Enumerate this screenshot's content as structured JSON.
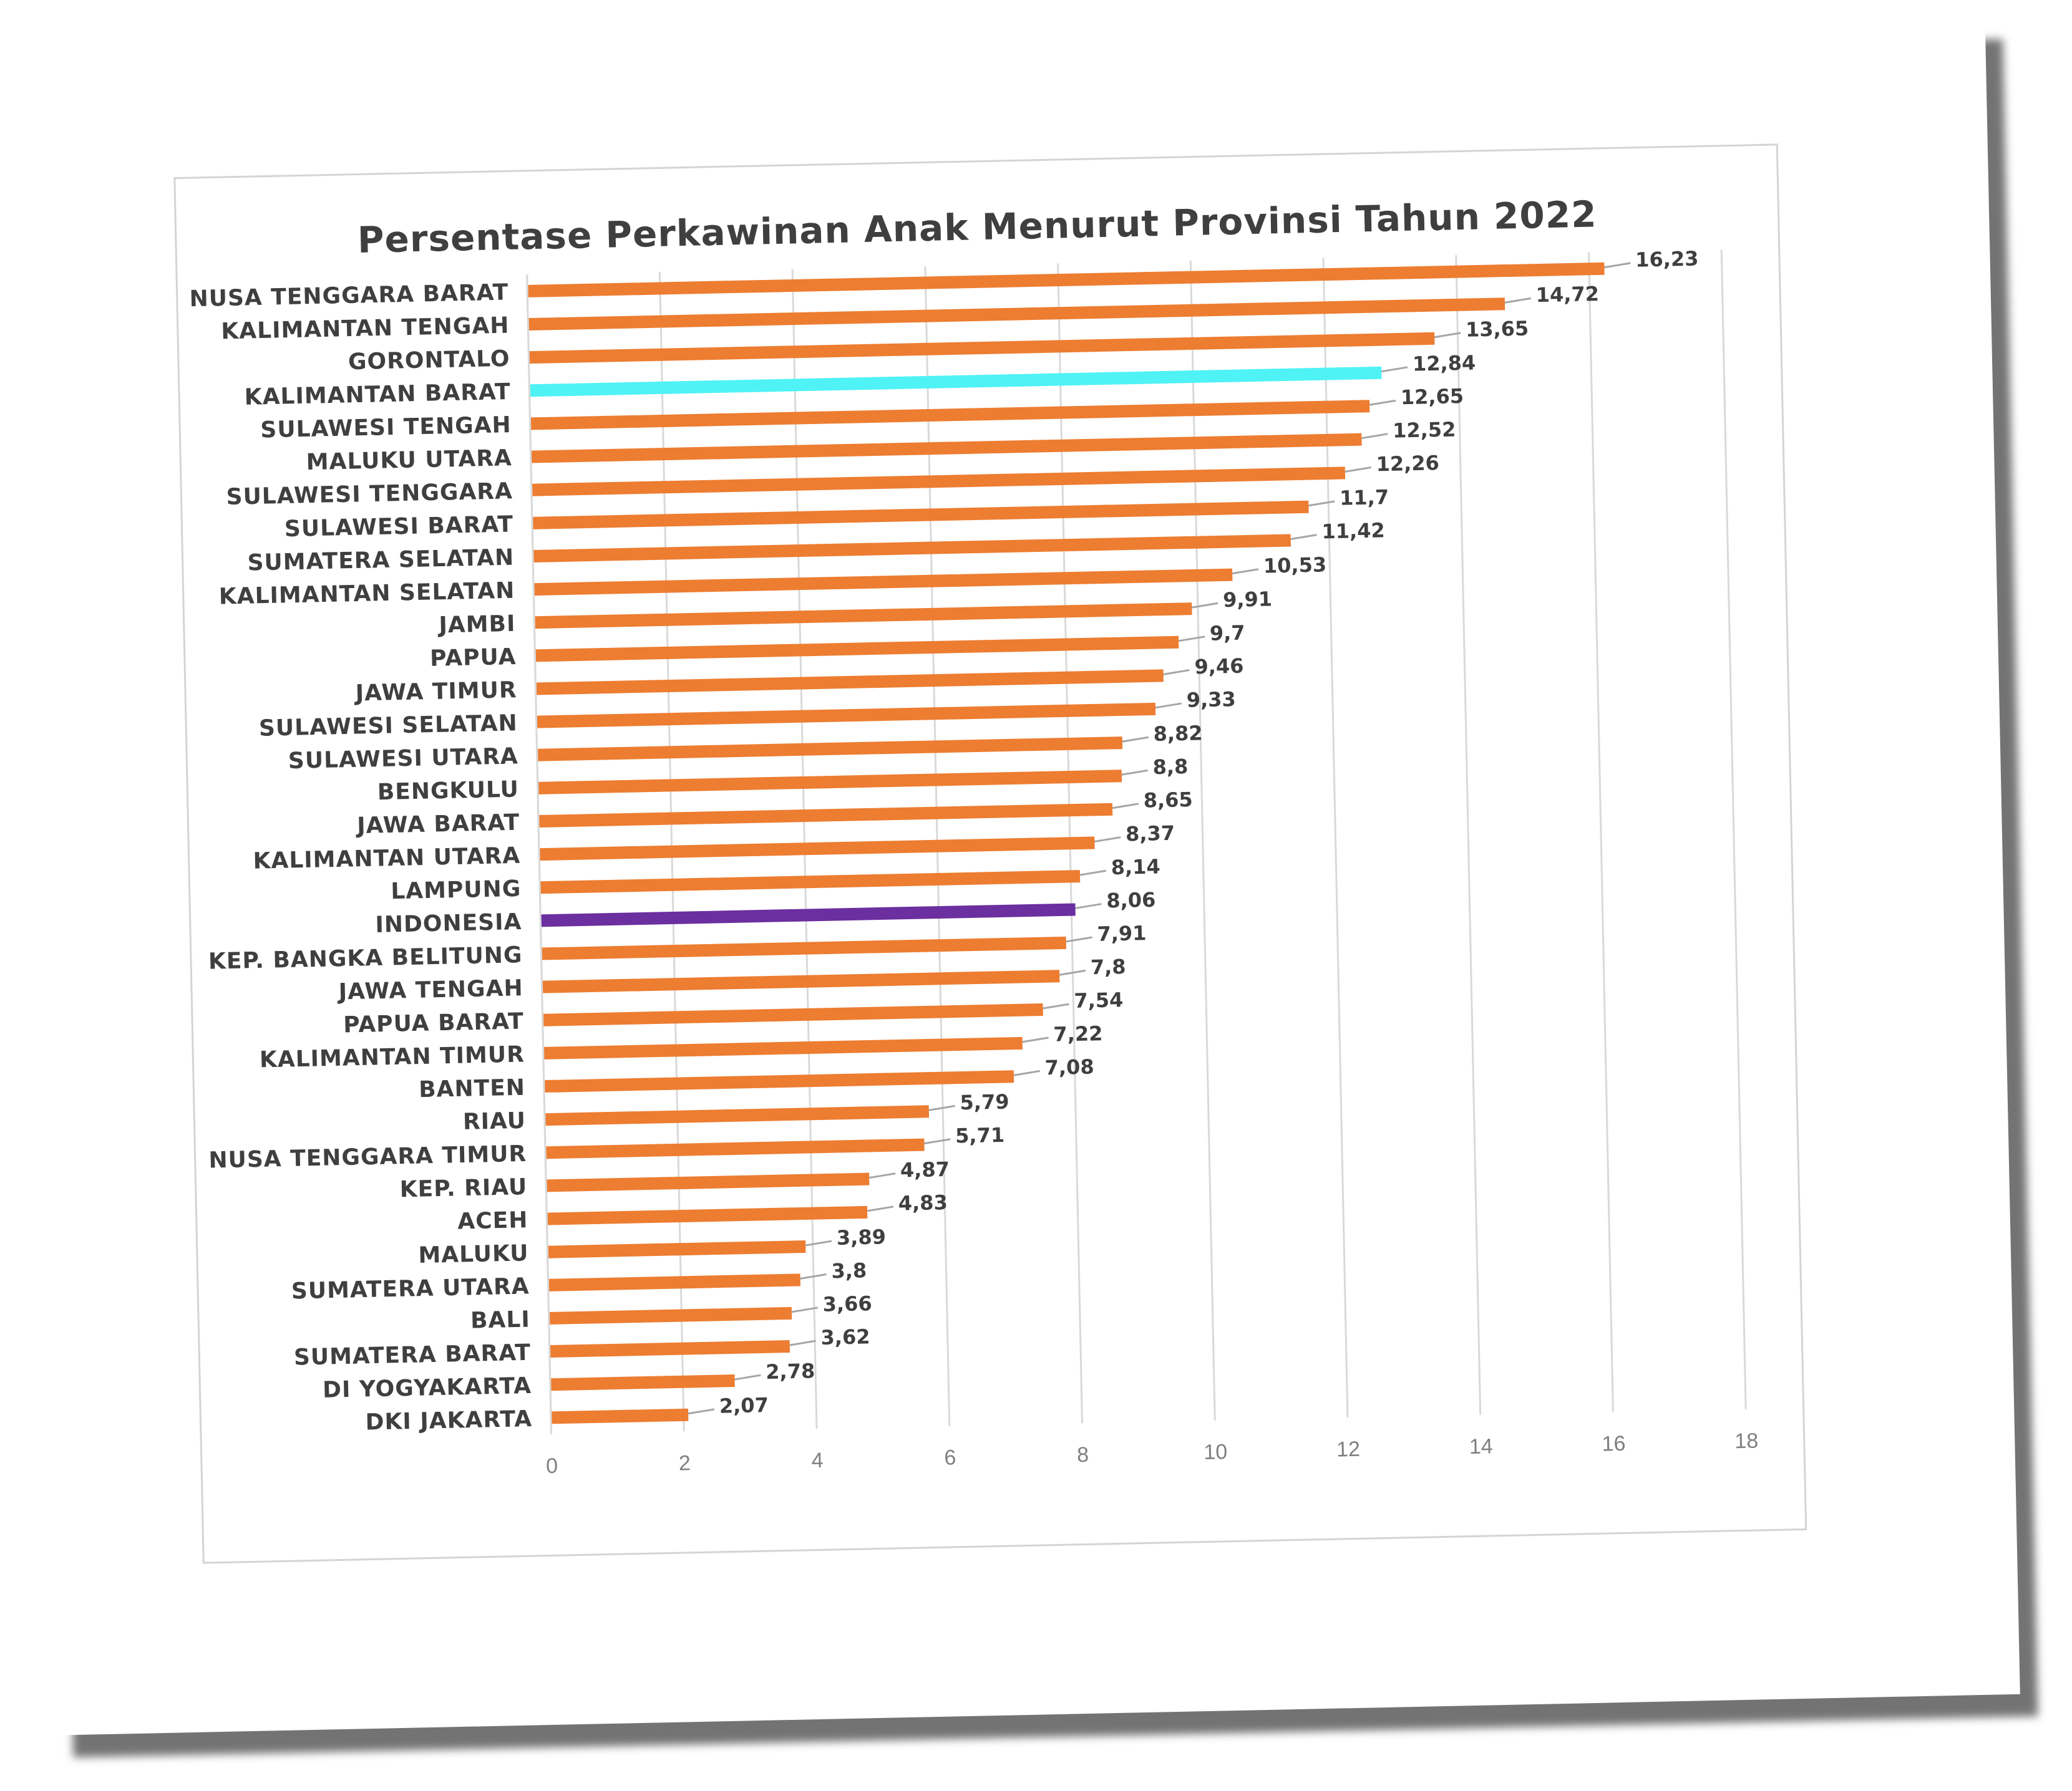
{
  "chart_data": {
    "type": "bar",
    "orientation": "horizontal",
    "title": "Persentase Perkawinan Anak Menurut Provinsi Tahun 2022",
    "xlabel": "",
    "ylabel": "",
    "xlim": [
      0,
      18
    ],
    "ticks": [
      "0",
      "2",
      "4",
      "6",
      "8",
      "10",
      "12",
      "14",
      "16",
      "18"
    ],
    "grid": "vertical",
    "legend": "none",
    "colors": {
      "default": "#ED7D31",
      "highlight": "#4FF2F5",
      "national": "#6B2FA0",
      "grid": "#d9d9d9",
      "leader": "#a6a6a6",
      "text": "#3f3f3f"
    },
    "categories": [
      "NUSA TENGGARA BARAT",
      "KALIMANTAN TENGAH",
      "GORONTALO",
      "KALIMANTAN BARAT",
      "SULAWESI TENGAH",
      "MALUKU UTARA",
      "SULAWESI TENGGARA",
      "SULAWESI BARAT",
      "SUMATERA SELATAN",
      "KALIMANTAN SELATAN",
      "JAMBI",
      "PAPUA",
      "JAWA TIMUR",
      "SULAWESI SELATAN",
      "SULAWESI UTARA",
      "BENGKULU",
      "JAWA BARAT",
      "KALIMANTAN UTARA",
      "LAMPUNG",
      "INDONESIA",
      "KEP. BANGKA BELITUNG",
      "JAWA TENGAH",
      "PAPUA BARAT",
      "KALIMANTAN TIMUR",
      "BANTEN",
      "RIAU",
      "NUSA TENGGARA TIMUR",
      "KEP. RIAU",
      "ACEH",
      "MALUKU",
      "SUMATERA UTARA",
      "BALI",
      "SUMATERA BARAT",
      "DI YOGYAKARTA",
      "DKI JAKARTA"
    ],
    "values": [
      16.23,
      14.72,
      13.65,
      12.84,
      12.65,
      12.52,
      12.26,
      11.7,
      11.42,
      10.53,
      9.91,
      9.7,
      9.46,
      9.33,
      8.82,
      8.8,
      8.65,
      8.37,
      8.14,
      8.06,
      7.91,
      7.8,
      7.54,
      7.22,
      7.08,
      5.79,
      5.71,
      4.87,
      4.83,
      3.89,
      3.8,
      3.66,
      3.62,
      2.78,
      2.07
    ],
    "value_labels": [
      "16,23",
      "14,72",
      "13,65",
      "12,84",
      "12,65",
      "12,52",
      "12,26",
      "11,7",
      "11,42",
      "10,53",
      "9,91",
      "9,7",
      "9,46",
      "9,33",
      "8,82",
      "8,8",
      "8,65",
      "8,37",
      "8,14",
      "8,06",
      "7,91",
      "7,8",
      "7,54",
      "7,22",
      "7,08",
      "5,79",
      "5,71",
      "4,87",
      "4,83",
      "3,89",
      "3,8",
      "3,66",
      "3,62",
      "2,78",
      "2,07"
    ],
    "bar_colors": [
      "default",
      "default",
      "default",
      "highlight",
      "default",
      "default",
      "default",
      "default",
      "default",
      "default",
      "default",
      "default",
      "default",
      "default",
      "default",
      "default",
      "default",
      "default",
      "default",
      "national",
      "default",
      "default",
      "default",
      "default",
      "default",
      "default",
      "default",
      "default",
      "default",
      "default",
      "default",
      "default",
      "default",
      "default",
      "default"
    ]
  }
}
